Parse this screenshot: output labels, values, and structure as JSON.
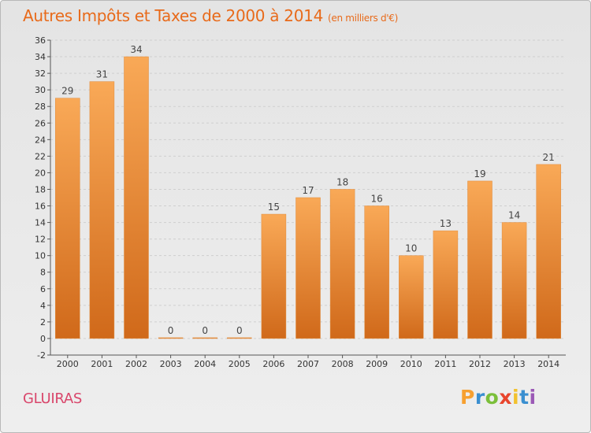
{
  "title": "Autres Impôts et Taxes de 2000 à 2014",
  "subtitle": "(en milliers d'€)",
  "commune": "GLUIRAS",
  "logo": {
    "letters": [
      "P",
      "r",
      "o",
      "x",
      "i",
      "t",
      "i"
    ],
    "colors": [
      "#f7a030",
      "#3a8fd0",
      "#7bbf3a",
      "#e8452d",
      "#f2c12e",
      "#3a8fd0",
      "#9b59b6"
    ]
  },
  "colors": {
    "title": "#e86a1a",
    "commune": "#d9466b",
    "bar_top": "#f9a957",
    "bar_bottom": "#d0691a",
    "background": "#eaeaea"
  },
  "chart_data": {
    "type": "bar",
    "categories": [
      "2000",
      "2001",
      "2002",
      "2003",
      "2004",
      "2005",
      "2006",
      "2007",
      "2008",
      "2009",
      "2010",
      "2011",
      "2012",
      "2013",
      "2014"
    ],
    "values": [
      29,
      31,
      34,
      0,
      0,
      0,
      15,
      17,
      18,
      16,
      10,
      13,
      19,
      14,
      21
    ],
    "ylim": [
      -2,
      36
    ],
    "yticks": [
      -2,
      0,
      2,
      4,
      6,
      8,
      10,
      12,
      14,
      16,
      18,
      20,
      22,
      24,
      26,
      28,
      30,
      32,
      34,
      36
    ],
    "grid": true,
    "data_labels": true
  }
}
